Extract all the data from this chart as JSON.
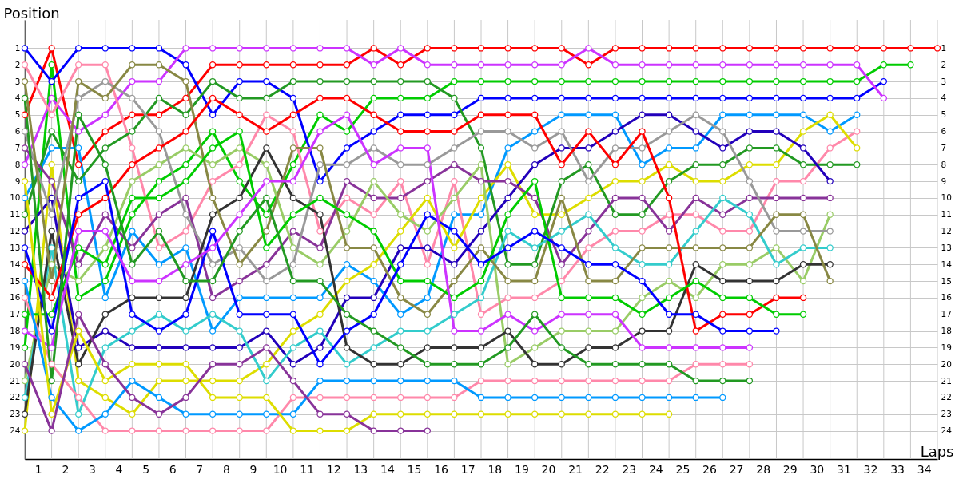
{
  "chart_data": {
    "type": "line",
    "xlabel": "Laps",
    "ylabel": "Position",
    "x": [
      0,
      1,
      2,
      3,
      4,
      5,
      6,
      7,
      8,
      9,
      10,
      11,
      12,
      13,
      14,
      15,
      16,
      17,
      18,
      19,
      20,
      21,
      22,
      23,
      24,
      25,
      26,
      27,
      28,
      29,
      30,
      31,
      32,
      33,
      34
    ],
    "series": [
      {
        "color": "#ff0000",
        "values": [
          5,
          1,
          8,
          6,
          5,
          5,
          4,
          2,
          2,
          2,
          2,
          2,
          2,
          1,
          2,
          1,
          1,
          1,
          1,
          1,
          1,
          2,
          1,
          1,
          1,
          1,
          1,
          1,
          1,
          1,
          1,
          1,
          1,
          1,
          1
        ]
      },
      {
        "color": "#00cc00",
        "values": [
          19,
          2,
          16,
          15,
          11,
          9,
          8,
          6,
          9,
          11,
          8,
          5,
          6,
          4,
          4,
          4,
          3,
          3,
          3,
          3,
          3,
          3,
          3,
          3,
          3,
          3,
          3,
          3,
          3,
          3,
          3,
          3,
          2,
          2,
          null
        ]
      },
      {
        "color": "#0000ff",
        "values": [
          1,
          3,
          1,
          1,
          1,
          1,
          2,
          5,
          3,
          3,
          4,
          9,
          7,
          6,
          5,
          5,
          5,
          4,
          4,
          4,
          4,
          4,
          4,
          4,
          4,
          4,
          4,
          4,
          4,
          4,
          4,
          4,
          3,
          null,
          null
        ]
      },
      {
        "color": "#cc33ff",
        "values": [
          8,
          4,
          6,
          5,
          3,
          3,
          1,
          1,
          1,
          1,
          1,
          1,
          1,
          2,
          1,
          2,
          2,
          2,
          2,
          2,
          2,
          1,
          2,
          2,
          2,
          2,
          2,
          2,
          2,
          2,
          2,
          2,
          4,
          null,
          null
        ]
      },
      {
        "color": "#0099ff",
        "values": [
          10,
          7,
          7,
          16,
          12,
          14,
          13,
          18,
          16,
          16,
          16,
          16,
          14,
          15,
          17,
          16,
          11,
          11,
          7,
          6,
          5,
          5,
          5,
          8,
          7,
          7,
          5,
          5,
          5,
          5,
          6,
          5,
          null,
          null,
          null
        ]
      },
      {
        "color": "#ff88aa",
        "values": [
          2,
          5,
          2,
          2,
          7,
          13,
          12,
          9,
          8,
          5,
          6,
          12,
          10,
          11,
          9,
          14,
          9,
          17,
          16,
          16,
          15,
          13,
          12,
          12,
          11,
          11,
          12,
          12,
          9,
          9,
          7,
          6,
          null,
          null,
          null
        ]
      },
      {
        "color": "#dddd00",
        "values": [
          24,
          8,
          21,
          22,
          23,
          21,
          21,
          21,
          21,
          20,
          18,
          17,
          15,
          14,
          12,
          10,
          13,
          10,
          8,
          11,
          11,
          10,
          9,
          9,
          8,
          9,
          9,
          8,
          8,
          6,
          5,
          7,
          null,
          null,
          null
        ]
      },
      {
        "color": "#229922",
        "values": [
          11,
          6,
          9,
          7,
          6,
          4,
          5,
          3,
          4,
          4,
          3,
          3,
          3,
          3,
          3,
          3,
          4,
          7,
          14,
          14,
          9,
          8,
          11,
          11,
          9,
          8,
          8,
          7,
          7,
          8,
          8,
          8,
          null,
          null,
          null
        ]
      },
      {
        "color": "#2200bb",
        "values": [
          12,
          10,
          19,
          18,
          19,
          19,
          19,
          19,
          19,
          18,
          20,
          19,
          16,
          16,
          13,
          13,
          14,
          12,
          10,
          8,
          7,
          7,
          6,
          5,
          5,
          6,
          7,
          6,
          6,
          7,
          9,
          null,
          null,
          null,
          null
        ]
      },
      {
        "color": "#883399",
        "values": [
          7,
          9,
          14,
          11,
          13,
          11,
          10,
          16,
          15,
          14,
          12,
          13,
          9,
          10,
          10,
          9,
          8,
          9,
          9,
          10,
          14,
          12,
          10,
          10,
          12,
          10,
          11,
          10,
          10,
          10,
          10,
          null,
          null,
          null,
          null
        ]
      },
      {
        "color": "#99cc66",
        "values": [
          21,
          14,
          15,
          13,
          9,
          8,
          7,
          8,
          7,
          8,
          13,
          14,
          12,
          9,
          11,
          12,
          10,
          8,
          20,
          19,
          18,
          18,
          18,
          16,
          15,
          16,
          14,
          14,
          13,
          15,
          11,
          null,
          null,
          null,
          null
        ]
      },
      {
        "color": "#999999",
        "values": [
          6,
          11,
          4,
          3,
          4,
          6,
          11,
          14,
          13,
          15,
          14,
          8,
          8,
          7,
          8,
          8,
          7,
          6,
          6,
          7,
          6,
          9,
          7,
          7,
          6,
          5,
          6,
          9,
          12,
          12,
          12,
          null,
          null,
          null,
          null
        ]
      },
      {
        "color": "#33cccc",
        "values": [
          22,
          13,
          23,
          19,
          18,
          17,
          18,
          17,
          18,
          21,
          19,
          18,
          20,
          19,
          18,
          18,
          17,
          16,
          12,
          13,
          12,
          11,
          13,
          14,
          14,
          12,
          10,
          11,
          14,
          13,
          13,
          null,
          null,
          null,
          null
        ]
      },
      {
        "color": "#333333",
        "values": [
          23,
          12,
          20,
          17,
          16,
          16,
          16,
          11,
          10,
          7,
          10,
          11,
          19,
          20,
          20,
          19,
          19,
          19,
          18,
          20,
          20,
          19,
          19,
          18,
          18,
          14,
          15,
          15,
          15,
          14,
          14,
          null,
          null,
          null,
          null
        ]
      },
      {
        "color": "#888844",
        "values": [
          3,
          15,
          3,
          4,
          2,
          2,
          3,
          10,
          14,
          12,
          7,
          7,
          13,
          13,
          16,
          17,
          15,
          13,
          15,
          15,
          10,
          15,
          15,
          13,
          13,
          13,
          13,
          13,
          11,
          11,
          15,
          null,
          null,
          null,
          null
        ]
      },
      {
        "color": "#ff0000",
        "values": [
          14,
          16,
          11,
          10,
          8,
          7,
          6,
          4,
          5,
          6,
          5,
          4,
          4,
          5,
          6,
          6,
          6,
          5,
          5,
          5,
          8,
          6,
          8,
          6,
          10,
          18,
          17,
          17,
          16,
          16,
          null,
          null,
          null,
          null,
          null
        ]
      },
      {
        "color": "#00cc00",
        "values": [
          17,
          17,
          13,
          14,
          10,
          10,
          9,
          7,
          6,
          13,
          11,
          10,
          11,
          12,
          15,
          15,
          16,
          15,
          11,
          9,
          16,
          16,
          16,
          17,
          16,
          15,
          16,
          16,
          17,
          17,
          null,
          null,
          null,
          null,
          null
        ]
      },
      {
        "color": "#0000ff",
        "values": [
          13,
          18,
          10,
          9,
          17,
          18,
          17,
          12,
          17,
          17,
          17,
          20,
          18,
          17,
          14,
          11,
          12,
          14,
          13,
          12,
          13,
          14,
          14,
          15,
          17,
          17,
          18,
          18,
          18,
          null,
          null,
          null,
          null,
          null,
          null
        ]
      },
      {
        "color": "#cc33ff",
        "values": [
          18,
          19,
          12,
          12,
          15,
          15,
          14,
          13,
          11,
          9,
          9,
          6,
          5,
          8,
          7,
          7,
          18,
          18,
          17,
          18,
          17,
          17,
          17,
          19,
          19,
          19,
          19,
          19,
          null,
          null,
          null,
          null,
          null,
          null,
          null
        ]
      },
      {
        "color": "#ff88aa",
        "values": [
          16,
          20,
          22,
          24,
          24,
          24,
          24,
          24,
          24,
          24,
          22,
          22,
          22,
          22,
          22,
          22,
          22,
          21,
          21,
          21,
          21,
          21,
          21,
          21,
          21,
          20,
          20,
          20,
          null,
          null,
          null,
          null,
          null,
          null,
          null
        ]
      },
      {
        "color": "#229922",
        "values": [
          4,
          21,
          5,
          8,
          14,
          12,
          15,
          15,
          12,
          10,
          15,
          15,
          17,
          18,
          19,
          20,
          20,
          20,
          19,
          17,
          19,
          20,
          20,
          20,
          20,
          21,
          21,
          21,
          null,
          null,
          null,
          null,
          null,
          null,
          null
        ]
      },
      {
        "color": "#0099ff",
        "values": [
          15,
          22,
          24,
          23,
          21,
          22,
          23,
          23,
          23,
          23,
          23,
          21,
          21,
          21,
          21,
          21,
          21,
          22,
          22,
          22,
          22,
          22,
          22,
          22,
          22,
          22,
          22,
          null,
          null,
          null,
          null,
          null,
          null,
          null,
          null
        ]
      },
      {
        "color": "#dddd00",
        "values": [
          9,
          23,
          18,
          21,
          20,
          20,
          20,
          22,
          22,
          22,
          24,
          24,
          24,
          23,
          23,
          23,
          23,
          23,
          23,
          23,
          23,
          23,
          23,
          23,
          23,
          null,
          null,
          null,
          null,
          null,
          null,
          null,
          null,
          null,
          null
        ]
      },
      {
        "color": "#883399",
        "values": [
          20,
          24,
          17,
          20,
          22,
          23,
          22,
          20,
          20,
          19,
          21,
          23,
          23,
          24,
          24,
          24,
          null,
          null,
          null,
          null,
          null,
          null,
          null,
          null,
          null,
          null,
          null,
          null,
          null,
          null,
          null,
          null,
          null,
          null,
          null
        ]
      }
    ],
    "xlim": [
      0,
      34
    ],
    "xticks": [
      {
        "value": 0,
        "label": null
      },
      {
        "value": 0.5,
        "label": "1"
      },
      {
        "value": 1,
        "label": null
      },
      {
        "value": 1.5,
        "label": "2"
      },
      {
        "value": 2,
        "label": null
      },
      {
        "value": 2.5,
        "label": "3"
      },
      {
        "value": 3,
        "label": null
      },
      {
        "value": 3.5,
        "label": "4"
      },
      {
        "value": 4,
        "label": null
      },
      {
        "value": 4.5,
        "label": "5"
      },
      {
        "value": 5,
        "label": null
      },
      {
        "value": 5.5,
        "label": "6"
      },
      {
        "value": 6,
        "label": null
      },
      {
        "value": 6.5,
        "label": "7"
      },
      {
        "value": 7,
        "label": null
      },
      {
        "value": 7.5,
        "label": "8"
      },
      {
        "value": 8,
        "label": null
      },
      {
        "value": 8.5,
        "label": "9"
      },
      {
        "value": 9,
        "label": null
      },
      {
        "value": 9.5,
        "label": "10"
      },
      {
        "value": 10,
        "label": null
      },
      {
        "value": 10.5,
        "label": "11"
      },
      {
        "value": 11,
        "label": null
      },
      {
        "value": 11.5,
        "label": "12"
      },
      {
        "value": 12,
        "label": null
      },
      {
        "value": 12.5,
        "label": "13"
      },
      {
        "value": 13,
        "label": null
      },
      {
        "value": 13.5,
        "label": "14"
      },
      {
        "value": 14,
        "label": null
      },
      {
        "value": 14.5,
        "label": "15"
      },
      {
        "value": 15,
        "label": null
      },
      {
        "value": 15.5,
        "label": "16"
      },
      {
        "value": 16,
        "label": null
      },
      {
        "value": 16.5,
        "label": "17"
      },
      {
        "value": 17,
        "label": null
      },
      {
        "value": 17.5,
        "label": "18"
      },
      {
        "value": 18,
        "label": null
      },
      {
        "value": 18.5,
        "label": "19"
      },
      {
        "value": 19,
        "label": null
      },
      {
        "value": 19.5,
        "label": "20"
      },
      {
        "value": 20,
        "label": null
      },
      {
        "value": 20.5,
        "label": "21"
      },
      {
        "value": 21,
        "label": null
      },
      {
        "value": 21.5,
        "label": "22"
      },
      {
        "value": 22,
        "label": null
      },
      {
        "value": 22.5,
        "label": "23"
      },
      {
        "value": 23,
        "label": null
      },
      {
        "value": 23.5,
        "label": "24"
      },
      {
        "value": 24,
        "label": null
      },
      {
        "value": 24.5,
        "label": "25"
      },
      {
        "value": 25,
        "label": null
      },
      {
        "value": 25.5,
        "label": "26"
      },
      {
        "value": 26,
        "label": null
      },
      {
        "value": 26.5,
        "label": "27"
      },
      {
        "value": 27,
        "label": null
      },
      {
        "value": 27.5,
        "label": "28"
      },
      {
        "value": 28,
        "label": null
      },
      {
        "value": 28.5,
        "label": "29"
      },
      {
        "value": 29,
        "label": null
      },
      {
        "value": 29.5,
        "label": "30"
      },
      {
        "value": 30,
        "label": null
      },
      {
        "value": 30.5,
        "label": "31"
      },
      {
        "value": 31,
        "label": null
      },
      {
        "value": 31.5,
        "label": "32"
      },
      {
        "value": 32,
        "label": null
      },
      {
        "value": 32.5,
        "label": "33"
      },
      {
        "value": 33,
        "label": null
      },
      {
        "value": 33.5,
        "label": "34"
      },
      {
        "value": 34,
        "label": null
      }
    ],
    "ylim": [
      25.7,
      -0.7
    ],
    "yticks": [
      1,
      2,
      3,
      4,
      5,
      6,
      7,
      8,
      9,
      10,
      11,
      12,
      13,
      14,
      15,
      16,
      17,
      18,
      19,
      20,
      21,
      22,
      23,
      24
    ],
    "y2lim": [
      25.7,
      -0.7
    ],
    "y2ticks": [
      1,
      2,
      3,
      4,
      5,
      6,
      7,
      8,
      9,
      10,
      11,
      12,
      13,
      14,
      15,
      16,
      17,
      18,
      19,
      20,
      21,
      22,
      23,
      24
    ],
    "grid": true,
    "marker": "circle",
    "line_style": "solid"
  }
}
